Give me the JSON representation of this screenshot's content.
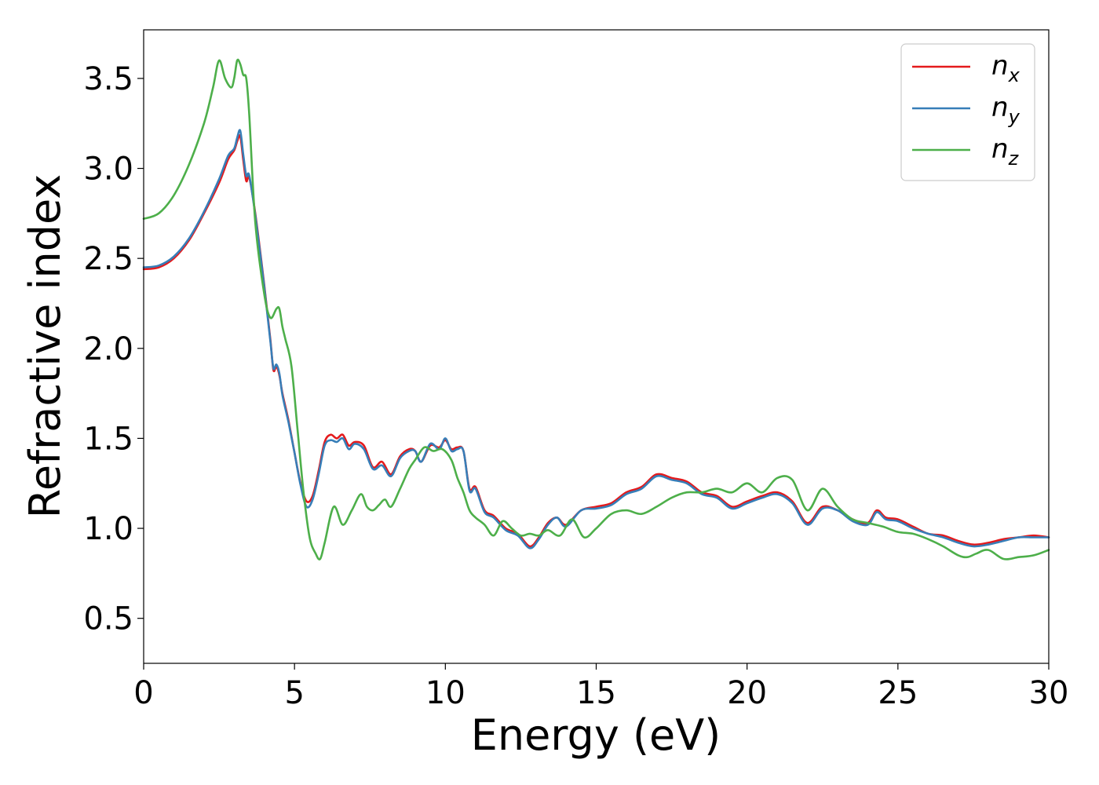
{
  "chart_data": {
    "type": "line",
    "title": "",
    "xlabel": "Energy (eV)",
    "ylabel": "Refractive index",
    "xlim": [
      0,
      30
    ],
    "ylim": [
      0.25,
      3.77
    ],
    "xticks": [
      0,
      5,
      10,
      15,
      20,
      25,
      30
    ],
    "yticks": [
      0.5,
      1.0,
      1.5,
      2.0,
      2.5,
      3.0,
      3.5
    ],
    "xtick_labels": [
      "0",
      "5",
      "10",
      "15",
      "20",
      "25",
      "30"
    ],
    "ytick_labels": [
      "0.5",
      "1.0",
      "1.5",
      "2.0",
      "2.5",
      "3.0",
      "3.5"
    ],
    "grid": false,
    "legend_position": "top-right",
    "series": [
      {
        "name_main": "n",
        "name_sub": "x",
        "color": "#e41a1c",
        "x": [
          0,
          0.5,
          1,
          1.5,
          2,
          2.5,
          2.8,
          3.0,
          3.1,
          3.2,
          3.3,
          3.4,
          3.5,
          3.7,
          4.0,
          4.2,
          4.3,
          4.4,
          4.5,
          4.6,
          4.8,
          5.0,
          5.2,
          5.4,
          5.6,
          5.8,
          6.0,
          6.2,
          6.4,
          6.6,
          6.8,
          7.0,
          7.3,
          7.6,
          7.9,
          8.2,
          8.5,
          8.8,
          9.0,
          9.2,
          9.5,
          9.8,
          10.0,
          10.2,
          10.4,
          10.6,
          10.8,
          11.0,
          11.3,
          11.6,
          12.0,
          12.4,
          12.8,
          13.1,
          13.4,
          13.7,
          14.0,
          14.5,
          15.0,
          15.5,
          16.0,
          16.5,
          17.0,
          17.5,
          18.0,
          18.5,
          19.0,
          19.5,
          20.0,
          20.5,
          21.0,
          21.5,
          22.0,
          22.5,
          23.0,
          23.5,
          24.0,
          24.3,
          24.6,
          25.0,
          25.5,
          26.0,
          26.5,
          27.0,
          27.5,
          28.0,
          28.5,
          29.0,
          29.5,
          30.0
        ],
        "y": [
          2.44,
          2.45,
          2.5,
          2.6,
          2.75,
          2.92,
          3.05,
          3.1,
          3.15,
          3.18,
          3.05,
          2.93,
          2.95,
          2.75,
          2.35,
          2.05,
          1.88,
          1.9,
          1.85,
          1.75,
          1.6,
          1.42,
          1.25,
          1.15,
          1.18,
          1.32,
          1.48,
          1.52,
          1.5,
          1.52,
          1.46,
          1.48,
          1.46,
          1.34,
          1.37,
          1.3,
          1.4,
          1.44,
          1.43,
          1.37,
          1.46,
          1.45,
          1.49,
          1.44,
          1.45,
          1.43,
          1.22,
          1.23,
          1.1,
          1.07,
          1.0,
          0.97,
          0.9,
          0.95,
          1.03,
          1.06,
          1.02,
          1.1,
          1.12,
          1.14,
          1.2,
          1.23,
          1.3,
          1.28,
          1.26,
          1.2,
          1.18,
          1.12,
          1.15,
          1.18,
          1.2,
          1.15,
          1.03,
          1.12,
          1.1,
          1.05,
          1.03,
          1.1,
          1.06,
          1.05,
          1.01,
          0.97,
          0.96,
          0.93,
          0.91,
          0.92,
          0.94,
          0.95,
          0.96,
          0.95
        ]
      },
      {
        "name_main": "n",
        "name_sub": "y",
        "color": "#377eb8",
        "x": [
          0,
          0.5,
          1,
          1.5,
          2,
          2.5,
          2.8,
          3.0,
          3.1,
          3.2,
          3.3,
          3.4,
          3.5,
          3.7,
          4.0,
          4.2,
          4.3,
          4.4,
          4.5,
          4.6,
          4.8,
          5.0,
          5.2,
          5.4,
          5.6,
          5.8,
          6.0,
          6.2,
          6.4,
          6.6,
          6.8,
          7.0,
          7.3,
          7.6,
          7.9,
          8.2,
          8.5,
          8.8,
          9.0,
          9.2,
          9.5,
          9.8,
          10.0,
          10.2,
          10.4,
          10.6,
          10.8,
          11.0,
          11.3,
          11.6,
          12.0,
          12.4,
          12.8,
          13.1,
          13.4,
          13.7,
          14.0,
          14.5,
          15.0,
          15.5,
          16.0,
          16.5,
          17.0,
          17.5,
          18.0,
          18.5,
          19.0,
          19.5,
          20.0,
          20.5,
          21.0,
          21.5,
          22.0,
          22.5,
          23.0,
          23.5,
          24.0,
          24.3,
          24.6,
          25.0,
          25.5,
          26.0,
          26.5,
          27.0,
          27.5,
          28.0,
          28.5,
          29.0,
          29.5,
          30.0
        ],
        "y": [
          2.45,
          2.46,
          2.51,
          2.61,
          2.76,
          2.94,
          3.07,
          3.11,
          3.17,
          3.21,
          3.08,
          2.96,
          2.96,
          2.74,
          2.34,
          2.04,
          1.89,
          1.91,
          1.86,
          1.74,
          1.59,
          1.42,
          1.24,
          1.12,
          1.16,
          1.3,
          1.46,
          1.49,
          1.48,
          1.5,
          1.44,
          1.47,
          1.44,
          1.33,
          1.35,
          1.29,
          1.39,
          1.43,
          1.43,
          1.37,
          1.47,
          1.44,
          1.5,
          1.43,
          1.44,
          1.43,
          1.21,
          1.22,
          1.09,
          1.06,
          0.99,
          0.96,
          0.89,
          0.94,
          1.02,
          1.06,
          1.01,
          1.1,
          1.11,
          1.13,
          1.19,
          1.22,
          1.29,
          1.27,
          1.25,
          1.19,
          1.17,
          1.11,
          1.14,
          1.17,
          1.19,
          1.14,
          1.02,
          1.11,
          1.1,
          1.04,
          1.02,
          1.09,
          1.05,
          1.04,
          1.0,
          0.97,
          0.95,
          0.92,
          0.9,
          0.91,
          0.93,
          0.95,
          0.95,
          0.95
        ]
      },
      {
        "name_main": "n",
        "name_sub": "z",
        "color": "#4daf4a",
        "x": [
          0,
          0.5,
          1,
          1.5,
          2,
          2.3,
          2.5,
          2.7,
          2.9,
          3.0,
          3.1,
          3.2,
          3.3,
          3.4,
          3.5,
          3.7,
          4.0,
          4.2,
          4.4,
          4.5,
          4.6,
          4.7,
          4.9,
          5.1,
          5.3,
          5.5,
          5.7,
          5.85,
          6.0,
          6.3,
          6.6,
          6.9,
          7.2,
          7.4,
          7.6,
          7.8,
          8.0,
          8.2,
          8.5,
          8.8,
          9.0,
          9.3,
          9.6,
          9.9,
          10.2,
          10.4,
          10.6,
          10.8,
          11.0,
          11.3,
          11.6,
          11.9,
          12.2,
          12.5,
          12.8,
          13.1,
          13.4,
          13.8,
          14.2,
          14.6,
          15.0,
          15.5,
          16.0,
          16.5,
          17.0,
          17.5,
          18.0,
          18.5,
          19.0,
          19.5,
          20.0,
          20.5,
          21.0,
          21.5,
          22.0,
          22.5,
          23.0,
          23.5,
          24.0,
          24.5,
          25.0,
          25.5,
          26.0,
          26.5,
          27.0,
          27.3,
          27.6,
          28.0,
          28.5,
          29.0,
          29.5,
          30.0
        ],
        "y": [
          2.72,
          2.75,
          2.85,
          3.02,
          3.25,
          3.45,
          3.6,
          3.5,
          3.45,
          3.5,
          3.6,
          3.58,
          3.52,
          3.5,
          3.3,
          2.7,
          2.3,
          2.17,
          2.22,
          2.22,
          2.12,
          2.05,
          1.9,
          1.55,
          1.2,
          0.95,
          0.86,
          0.83,
          0.92,
          1.12,
          1.02,
          1.1,
          1.19,
          1.12,
          1.1,
          1.13,
          1.16,
          1.12,
          1.22,
          1.33,
          1.38,
          1.45,
          1.43,
          1.44,
          1.38,
          1.28,
          1.2,
          1.1,
          1.06,
          1.02,
          0.96,
          1.04,
          1.0,
          0.96,
          0.97,
          0.96,
          0.99,
          0.96,
          1.05,
          0.95,
          1.0,
          1.08,
          1.1,
          1.08,
          1.12,
          1.17,
          1.2,
          1.2,
          1.22,
          1.2,
          1.25,
          1.2,
          1.28,
          1.27,
          1.1,
          1.22,
          1.12,
          1.05,
          1.03,
          1.01,
          0.98,
          0.97,
          0.94,
          0.9,
          0.85,
          0.84,
          0.86,
          0.88,
          0.83,
          0.84,
          0.85,
          0.88
        ]
      }
    ]
  }
}
